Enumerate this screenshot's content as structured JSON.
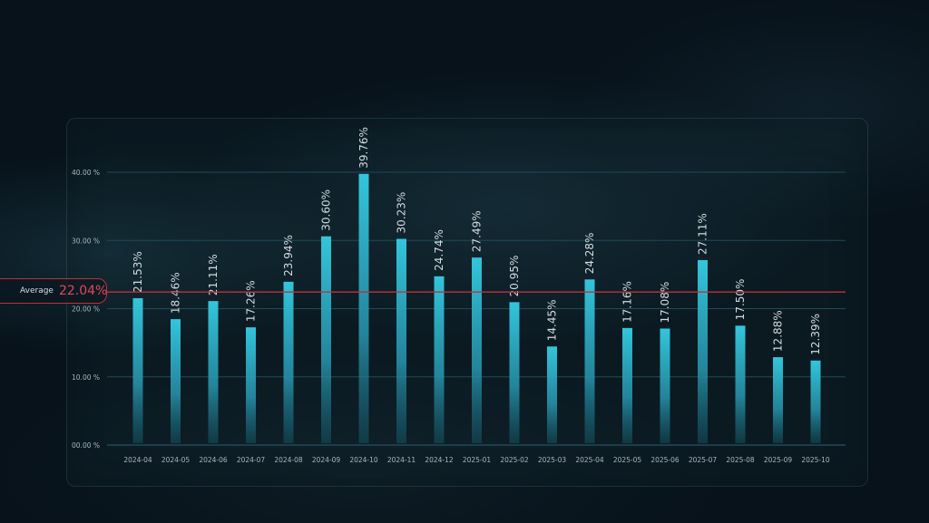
{
  "chart_data": {
    "type": "bar",
    "categories": [
      "2024-04",
      "2024-05",
      "2024-06",
      "2024-07",
      "2024-08",
      "2024-09",
      "2024-10",
      "2024-11",
      "2024-12",
      "2025-01",
      "2025-02",
      "2025-03",
      "2025-04",
      "2025-05",
      "2025-06",
      "2025-07",
      "2025-08",
      "2025-09",
      "2025-10"
    ],
    "values": [
      21.53,
      18.46,
      21.11,
      17.26,
      23.94,
      30.6,
      39.76,
      30.23,
      24.74,
      27.49,
      20.95,
      14.45,
      24.28,
      17.16,
      17.08,
      27.11,
      17.5,
      12.88,
      12.39
    ],
    "value_labels": [
      "21.53%",
      "18.46%",
      "21.11%",
      "17.26%",
      "23.94%",
      "30.60%",
      "39.76%",
      "30.23%",
      "24.74%",
      "27.49%",
      "20.95%",
      "14.45%",
      "24.28%",
      "17.16%",
      "17.08%",
      "27.11%",
      "17.50%",
      "12.88%",
      "12.39%"
    ],
    "y_ticks": [
      0,
      10,
      20,
      30,
      40
    ],
    "y_tick_labels": [
      "00.00 %",
      "10.00 %",
      "20.00 %",
      "30.00 %",
      "40.00 %"
    ],
    "ylim": [
      0,
      40
    ],
    "grid": true,
    "average": {
      "label": "Average",
      "value": 22.04,
      "value_label": "22.04%"
    },
    "colors": {
      "bar_top": "#2ec0d6",
      "bar_bottom": "#1a6e82",
      "average_line": "#c0303a",
      "average_value": "#e2485a",
      "grid": "#1f4a58",
      "text": "#aab5bd"
    }
  }
}
